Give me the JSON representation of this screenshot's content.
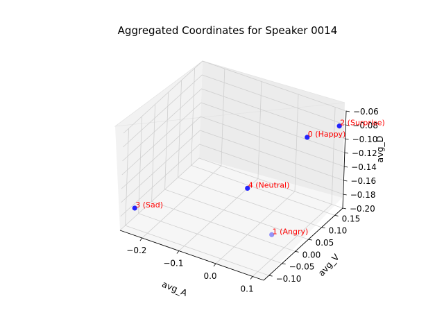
{
  "chart_data": {
    "type": "scatter",
    "title": "Aggregated Coordinates for Speaker 0014",
    "xlabel": "avg_A",
    "ylabel": "avg_V",
    "zlabel": "avg_D",
    "x_ticks": [
      "−0.2",
      "−0.1",
      "0.0",
      "0.1"
    ],
    "y_ticks": [
      "−0.10",
      "−0.05",
      "0.00",
      "0.05",
      "0.10",
      "0.15"
    ],
    "z_ticks": [
      "−0.20",
      "−0.18",
      "−0.16",
      "−0.14",
      "−0.12",
      "−0.10",
      "−0.08",
      "−0.06"
    ],
    "xlim": [
      -0.26,
      0.13
    ],
    "ylim": [
      -0.12,
      0.18
    ],
    "zlim": [
      -0.2,
      -0.06
    ],
    "marker_color": "#0000ff",
    "label_color": "#ff0000",
    "grid": true,
    "points": [
      {
        "label": "0 (Happy)",
        "x": 0.11,
        "y": 0.06,
        "z": -0.06
      },
      {
        "label": "1 (Angry)",
        "x": 0.12,
        "y": -0.08,
        "z": -0.15
      },
      {
        "label": "2 (Surprise)",
        "x": 0.12,
        "y": 0.17,
        "z": -0.08
      },
      {
        "label": "3 (Sad)",
        "x": -0.25,
        "y": -0.08,
        "z": -0.18
      },
      {
        "label": "4 (Neutral)",
        "x": -0.1,
        "y": 0.14,
        "z": -0.2
      }
    ]
  }
}
